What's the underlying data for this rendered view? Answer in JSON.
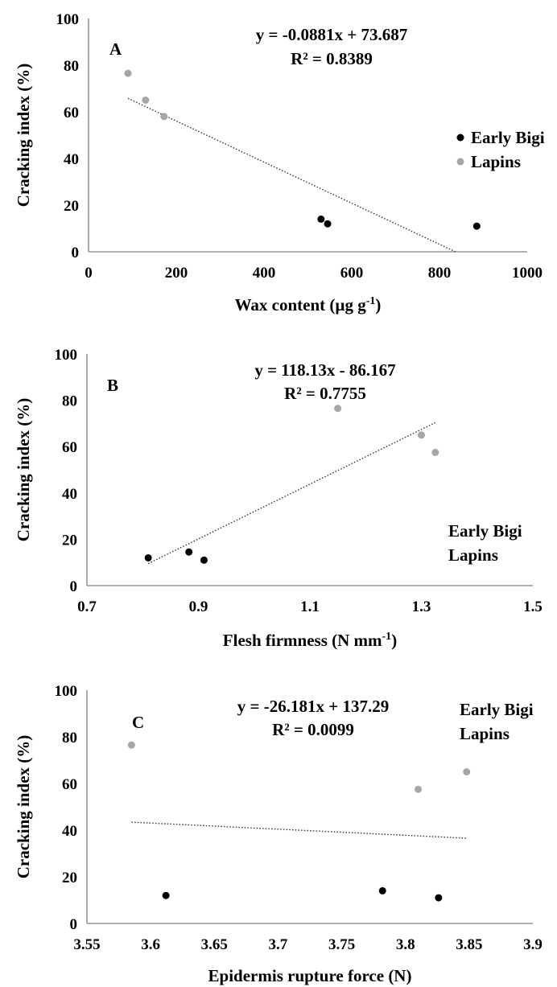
{
  "chart_data": [
    {
      "type": "scatter",
      "panel_label": "A",
      "xlabel": "Wax content (µg g",
      "xlabel_sup": "-1",
      "xlabel_end": ")",
      "ylabel": "Cracking index (%)",
      "xlim": [
        0,
        1000
      ],
      "ylim": [
        0,
        100
      ],
      "xticks": [
        0,
        200,
        400,
        600,
        800,
        1000
      ],
      "yticks": [
        0,
        20,
        40,
        60,
        80,
        100
      ],
      "equation": "y = -0.0881x + 73.687",
      "r2": "R² = 0.8389",
      "trend": {
        "slope": -0.0881,
        "intercept": 73.687,
        "x_range": [
          90,
          836
        ]
      },
      "series": [
        {
          "name": "Early Bigi",
          "color": "#000000",
          "points": [
            [
              530,
              14
            ],
            [
              545,
              12
            ],
            [
              885,
              11
            ]
          ]
        },
        {
          "name": "Lapins",
          "color": "#a6a6a6",
          "points": [
            [
              90,
              76.5
            ],
            [
              130,
              65
            ],
            [
              172,
              58
            ]
          ]
        }
      ],
      "legend": {
        "placement": "right",
        "show_markers": true
      },
      "grid": false
    },
    {
      "type": "scatter",
      "panel_label": "B",
      "xlabel": "Flesh firmness (N mm",
      "xlabel_sup": "-1",
      "xlabel_end": ")",
      "ylabel": "Cracking index (%)",
      "xlim": [
        0.7,
        1.5
      ],
      "ylim": [
        0,
        100
      ],
      "xticks": [
        "0.7",
        "0.9",
        "1.1",
        "1.3",
        "1.5"
      ],
      "yticks": [
        0,
        20,
        40,
        60,
        80,
        100
      ],
      "equation": "y = 118.13x - 86.167",
      "r2": "R² = 0.7755",
      "trend": {
        "slope": 118.13,
        "intercept": -86.167,
        "x_range": [
          0.81,
          1.325
        ]
      },
      "series": [
        {
          "name": "Early Bigi",
          "color": "#000000",
          "points": [
            [
              0.81,
              12
            ],
            [
              0.883,
              14.5
            ],
            [
              0.91,
              11
            ]
          ]
        },
        {
          "name": "Lapins",
          "color": "#a6a6a6",
          "points": [
            [
              1.15,
              76.5
            ],
            [
              1.3,
              65
            ],
            [
              1.325,
              57.5
            ]
          ]
        }
      ],
      "legend": {
        "placement": "bottom-right",
        "show_markers": false
      },
      "grid": false
    },
    {
      "type": "scatter",
      "panel_label": "C",
      "xlabel": "Epidermis rupture force (N)",
      "ylabel": "Cracking index (%)",
      "xlim": [
        3.55,
        3.9
      ],
      "ylim": [
        0,
        100
      ],
      "xticks": [
        "3.55",
        "3.6",
        "3.65",
        "3.7",
        "3.75",
        "3.8",
        "3.85",
        "3.9"
      ],
      "yticks": [
        0,
        20,
        40,
        60,
        80,
        100
      ],
      "equation": "y = -26.181x + 137.29",
      "r2": "R² = 0.0099",
      "trend": {
        "slope": -26.181,
        "intercept": 137.29,
        "x_range": [
          3.585,
          3.848
        ]
      },
      "series": [
        {
          "name": "Early Bigi",
          "color": "#000000",
          "points": [
            [
              3.612,
              12
            ],
            [
              3.782,
              14
            ],
            [
              3.826,
              11
            ]
          ]
        },
        {
          "name": "Lapins",
          "color": "#a6a6a6",
          "points": [
            [
              3.585,
              76.5
            ],
            [
              3.81,
              57.5
            ],
            [
              3.848,
              65
            ]
          ]
        }
      ],
      "legend": {
        "placement": "top-right",
        "show_markers": false
      },
      "grid": false
    }
  ]
}
